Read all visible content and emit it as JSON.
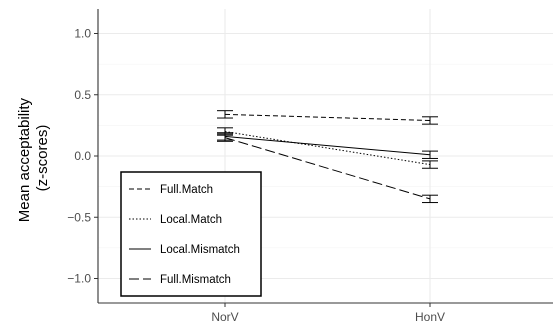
{
  "chart_data": {
    "type": "line",
    "title": "",
    "xlabel": "",
    "ylabel": "Mean acceptability\n(z-scores)",
    "categories": [
      "NorV",
      "HonV"
    ],
    "ylim": [
      -1.2,
      1.2
    ],
    "yticks": [
      1.0,
      0.5,
      0.0,
      -0.5,
      -1.0
    ],
    "ytick_labels": [
      "1.0",
      "0.5",
      "0.0",
      "−0.5",
      "−1.0"
    ],
    "grid": true,
    "legend_position": "bottom-left",
    "series": [
      {
        "name": "Full.Match",
        "dash": "dashed",
        "values": [
          0.34,
          0.29
        ],
        "err": [
          0.03,
          0.03
        ]
      },
      {
        "name": "Local.Match",
        "dash": "dotted",
        "values": [
          0.2,
          -0.07
        ],
        "err": [
          0.03,
          0.03
        ]
      },
      {
        "name": "Local.Mismatch",
        "dash": "solid",
        "values": [
          0.16,
          0.01
        ],
        "err": [
          0.03,
          0.03
        ]
      },
      {
        "name": "Full.Mismatch",
        "dash": "longdash",
        "values": [
          0.15,
          -0.35
        ],
        "err": [
          0.03,
          0.03
        ]
      }
    ]
  }
}
